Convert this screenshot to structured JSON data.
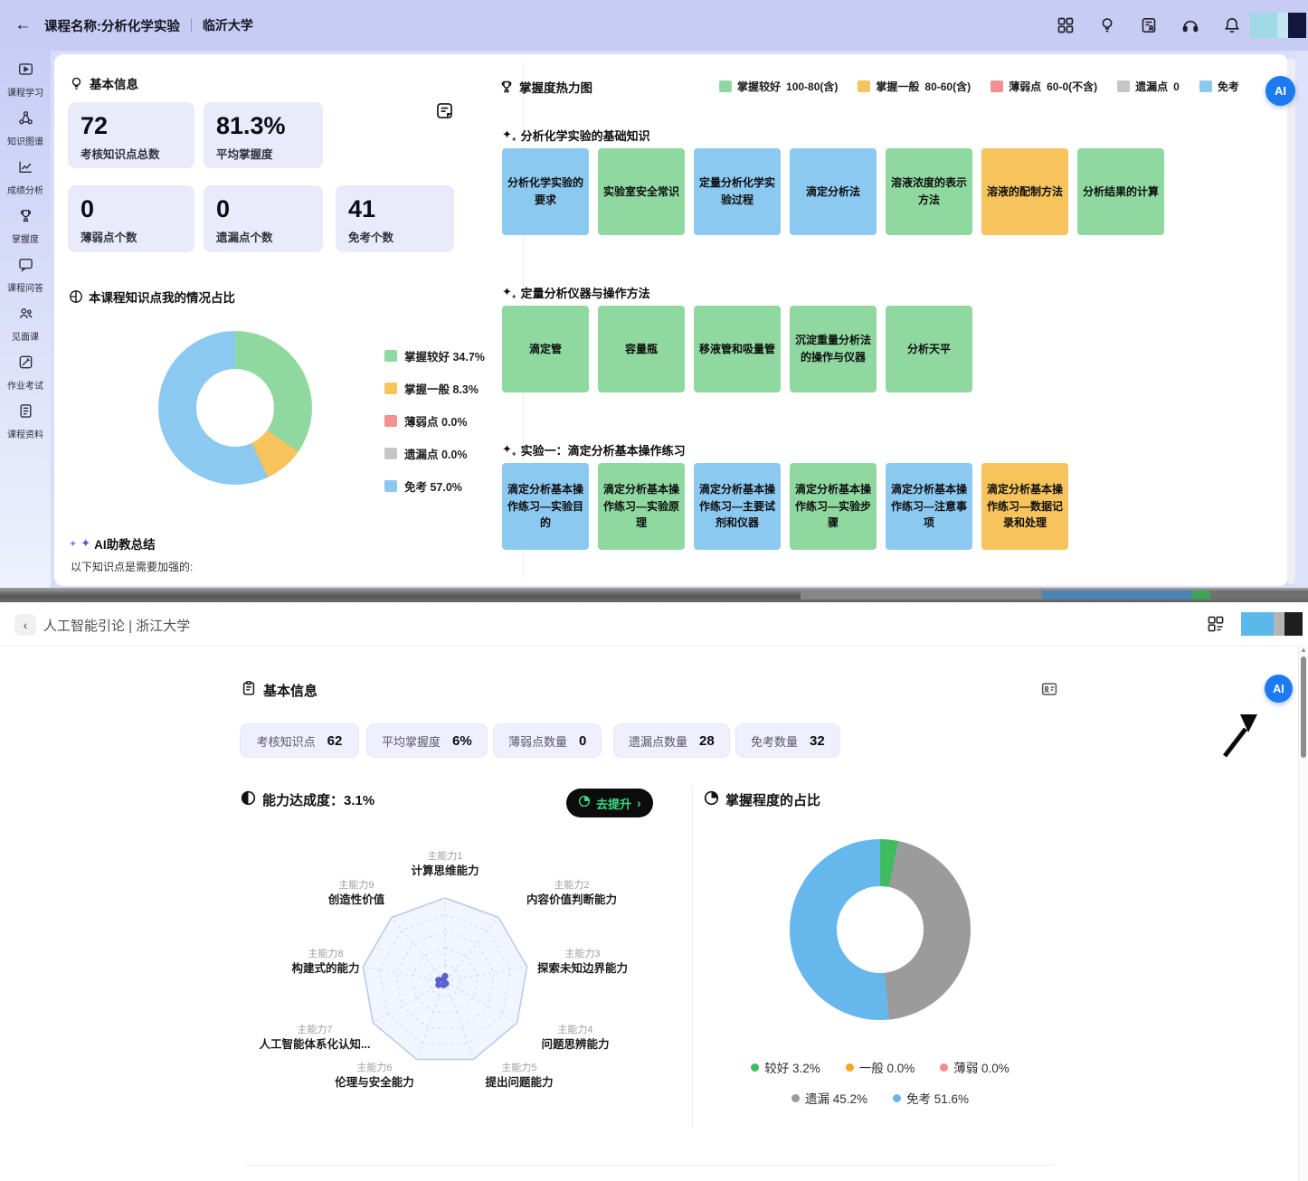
{
  "colors": {
    "green": "#8fd9a1",
    "orange": "#f6c35c",
    "red": "#f39090",
    "gray": "#c6c6c6",
    "blue": "#8cc9f1",
    "d2green": "#3dbd5d",
    "d2orange": "#f5a623",
    "d2red": "#f88b8b",
    "d2gray": "#9b9b9b",
    "d2blue": "#66b7ec",
    "aiblue": "#1e7af0",
    "pillgreen": "#38d97f",
    "headerlav": "#c6ccf4",
    "pagelav": "#d9ddf8",
    "cardlav": "#e9ebfa",
    "chiplav": "#efeffd",
    "radar_purple": "#5a62d2",
    "radar_ring": "#b9c6f2",
    "radar_grid": "#cdd7f3"
  },
  "icons": {
    "back": "←",
    "chevron_left": "‹",
    "chevron_right": "›",
    "spark": "✦",
    "spark2": "✧",
    "up": "▲",
    "divider": "|"
  },
  "top_window": {
    "header": {
      "title": "课程名称:分析化学实验",
      "school": "临沂大学"
    },
    "sidebar": [
      {
        "label": "课程学习"
      },
      {
        "label": "知识图谱"
      },
      {
        "label": "成绩分析"
      },
      {
        "label": "掌握度"
      },
      {
        "label": "课程问答"
      },
      {
        "label": "见面课"
      },
      {
        "label": "作业考试"
      },
      {
        "label": "课程资料"
      }
    ],
    "basic_info": {
      "title": "基本信息",
      "stats": [
        {
          "value": "72",
          "label": "考核知识点总数"
        },
        {
          "value": "81.3%",
          "label": "平均掌握度"
        },
        {
          "value": "0",
          "label": "薄弱点个数"
        },
        {
          "value": "0",
          "label": "遗漏点个数"
        },
        {
          "value": "41",
          "label": "免考个数"
        }
      ]
    },
    "share": {
      "title": "本课程知识点我的情况占比",
      "legend": [
        {
          "label": "掌握较好 34.7%",
          "tone": "green"
        },
        {
          "label": "掌握一般 8.3%",
          "tone": "orange"
        },
        {
          "label": "薄弱点 0.0%",
          "tone": "red"
        },
        {
          "label": "遗漏点 0.0%",
          "tone": "gray"
        },
        {
          "label": "免考 57.0%",
          "tone": "blue"
        }
      ]
    },
    "ai_summary": {
      "title": "AI助教总结",
      "line": "以下知识点是需要加强的:"
    },
    "heatmap": {
      "title": "掌握度热力图",
      "legend": [
        {
          "label": "掌握较好",
          "range": "100-80(含)",
          "tone": "green"
        },
        {
          "label": "掌握一般",
          "range": "80-60(含)",
          "tone": "orange"
        },
        {
          "label": "薄弱点",
          "range": "60-0(不含)",
          "tone": "red"
        },
        {
          "label": "遗漏点",
          "range": "0",
          "tone": "gray"
        },
        {
          "label": "免考",
          "range": "",
          "tone": "blue"
        }
      ],
      "sections": [
        {
          "title": "分析化学实验的基础知识",
          "tiles": [
            {
              "label": "分析化学实验的要求",
              "tone": "blue"
            },
            {
              "label": "实验室安全常识",
              "tone": "green"
            },
            {
              "label": "定量分析化学实验过程",
              "tone": "blue"
            },
            {
              "label": "滴定分析法",
              "tone": "blue"
            },
            {
              "label": "溶液浓度的表示方法",
              "tone": "green"
            },
            {
              "label": "溶液的配制方法",
              "tone": "orange"
            },
            {
              "label": "分析结果的计算",
              "tone": "green"
            }
          ]
        },
        {
          "title": "定量分析仪器与操作方法",
          "tiles": [
            {
              "label": "滴定管",
              "tone": "green"
            },
            {
              "label": "容量瓶",
              "tone": "green"
            },
            {
              "label": "移液管和吸量管",
              "tone": "green"
            },
            {
              "label": "沉淀重量分析法的操作与仪器",
              "tone": "green"
            },
            {
              "label": "分析天平",
              "tone": "green"
            }
          ]
        },
        {
          "title": "实验一：滴定分析基本操作练习",
          "tiles": [
            {
              "label": "滴定分析基本操作练习—实验目的",
              "tone": "blue"
            },
            {
              "label": "滴定分析基本操作练习—实验原理",
              "tone": "green"
            },
            {
              "label": "滴定分析基本操作练习—主要试剂和仪器",
              "tone": "blue"
            },
            {
              "label": "滴定分析基本操作练习—实验步骤",
              "tone": "green"
            },
            {
              "label": "滴定分析基本操作练习—注意事项",
              "tone": "blue"
            },
            {
              "label": "滴定分析基本操作练习—数据记录和处理",
              "tone": "orange"
            }
          ]
        }
      ]
    },
    "ai_button": "AI"
  },
  "bottom_window": {
    "header": {
      "title": "人工智能引论 | 浙江大学"
    },
    "basic_info": {
      "title": "基本信息",
      "chips": [
        {
          "label": "考核知识点",
          "value": "62"
        },
        {
          "label": "平均掌握度",
          "value": "6%"
        },
        {
          "label": "薄弱点数量",
          "value": "0"
        },
        {
          "label": "遗漏点数量",
          "value": "28"
        },
        {
          "label": "免考数量",
          "value": "32"
        }
      ]
    },
    "ability": {
      "title": "能力达成度：3.1%",
      "button": "去提升"
    },
    "mastery": {
      "title": "掌握程度的占比",
      "legend": [
        {
          "label": "较好 3.2%",
          "tone": "d2green"
        },
        {
          "label": "一般 0.0%",
          "tone": "d2orange"
        },
        {
          "label": "薄弱 0.0%",
          "tone": "d2red"
        },
        {
          "label": "遗漏 45.2%",
          "tone": "d2gray"
        },
        {
          "label": "免考 51.6%",
          "tone": "d2blue"
        }
      ]
    },
    "ai_button": "AI"
  },
  "chart_data": [
    {
      "id": "knowledge-share-donut",
      "type": "pie",
      "title": "本课程知识点我的情况占比",
      "labels": [
        "掌握较好",
        "掌握一般",
        "薄弱点",
        "遗漏点",
        "免考"
      ],
      "values": [
        34.7,
        8.3,
        0.0,
        0.0,
        57.0
      ],
      "colors": [
        "#8fd9a1",
        "#f6c35c",
        "#f39090",
        "#c6c6c6",
        "#8cc9f1"
      ],
      "legend_position": "right"
    },
    {
      "id": "mastery-share-donut",
      "type": "pie",
      "title": "掌握程度的占比",
      "labels": [
        "较好",
        "一般",
        "薄弱",
        "遗漏",
        "免考"
      ],
      "values": [
        3.2,
        0.0,
        0.0,
        45.2,
        51.6
      ],
      "colors": [
        "#3dbd5d",
        "#f5a623",
        "#f88b8b",
        "#9b9b9b",
        "#66b7ec"
      ],
      "legend_position": "bottom"
    },
    {
      "id": "ability-radar",
      "type": "radar",
      "max": 100,
      "axes": [
        {
          "code": "主能力1",
          "name": "计算思维能力"
        },
        {
          "code": "主能力2",
          "name": "内容价值判断能力"
        },
        {
          "code": "主能力3",
          "name": "探索未知边界能力"
        },
        {
          "code": "主能力4",
          "name": "问题思辨能力"
        },
        {
          "code": "主能力5",
          "name": "提出问题能力"
        },
        {
          "code": "主能力6",
          "name": "伦理与安全能力"
        },
        {
          "code": "主能力7",
          "name": "人工智能体系化认知..."
        },
        {
          "code": "主能力8",
          "name": "构建式的能力"
        },
        {
          "code": "主能力9",
          "name": "创造性价值"
        }
      ],
      "values": [
        6,
        2,
        1,
        1,
        3,
        5,
        9,
        8,
        3
      ]
    }
  ]
}
